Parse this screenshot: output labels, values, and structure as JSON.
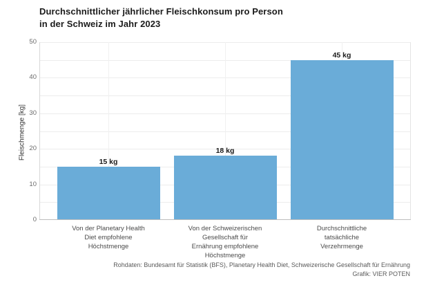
{
  "header": {
    "title": "Durchschnittlicher jährlicher Fleischkonsum pro Person\nin der Schweiz im Jahr 2023"
  },
  "footer": {
    "source_line": "Rohdaten: Bundesamt für Statistik (BFS), Planetary Health Diet, Schweizerische Gesellschaft für Ernährung",
    "credit_line": "Grafik: VIER POTEN"
  },
  "chart_data": {
    "type": "bar",
    "title": "Durchschnittlicher jährlicher Fleischkonsum pro Person in der Schweiz im Jahr 2023",
    "categories": [
      "Von der Planetary Health\nDiet empfohlene\nHöchstmenge",
      "Von der Schweizerischen\nGesellschaft für\nErnährung empfohlene\nHöchstmenge",
      "Durchschnittliche\ntatsächliche\nVerzehrmenge"
    ],
    "values": [
      15,
      18,
      45
    ],
    "value_labels": [
      "15 kg",
      "18 kg",
      "45 kg"
    ],
    "unit": "kg",
    "xlabel": "",
    "ylabel": "Fleischmenge [kg]",
    "ylim": [
      0,
      50
    ],
    "yticks": [
      0,
      10,
      20,
      30,
      40,
      50
    ],
    "grid_step": 5,
    "grid": "on",
    "legend": "none",
    "bar_color": "#6aacd8",
    "background_color": "#ffffff"
  }
}
